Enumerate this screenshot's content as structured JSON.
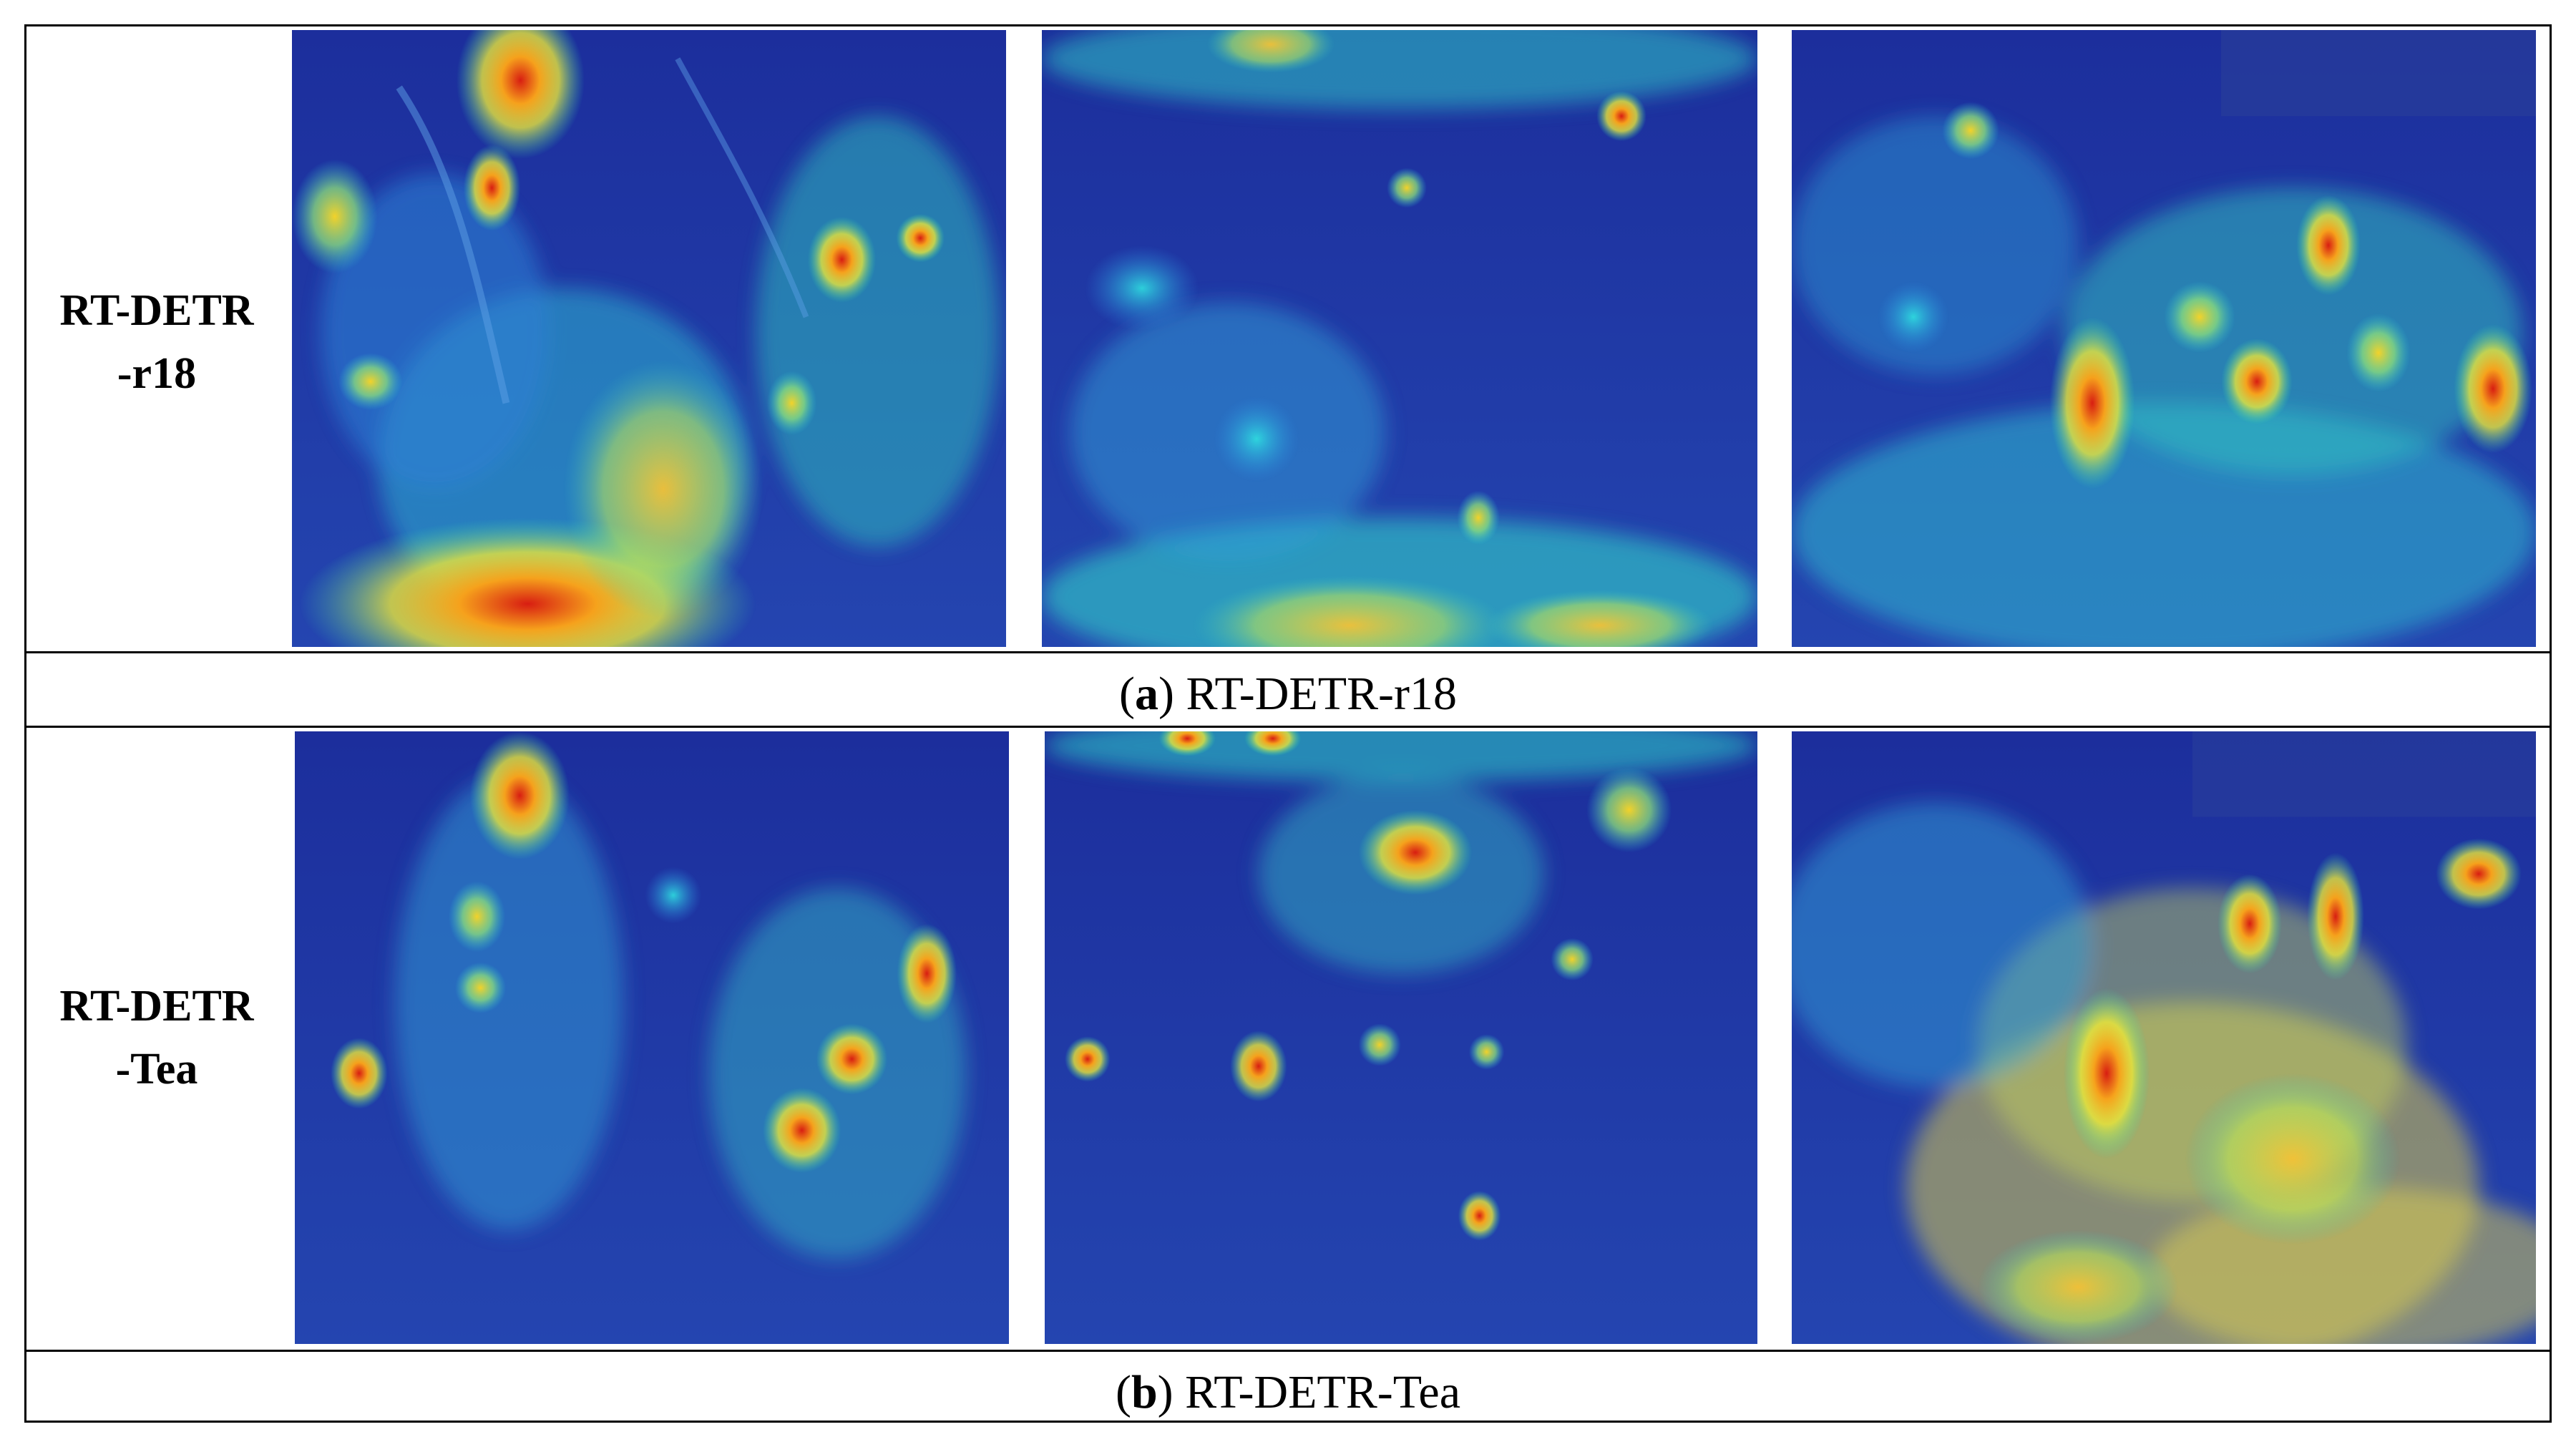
{
  "rows": [
    {
      "label_line1": "RT-DETR",
      "label_line2": "-r18",
      "caption_letter": "a",
      "caption_text": "RT-DETR-r18"
    },
    {
      "label_line1": "RT-DETR",
      "label_line2": "-Tea",
      "caption_letter": "b",
      "caption_text": "RT-DETR-Tea"
    }
  ],
  "colors": {
    "border": "#000000",
    "heat_cold": "#122a8c",
    "heat_hot": "#e8321a"
  }
}
